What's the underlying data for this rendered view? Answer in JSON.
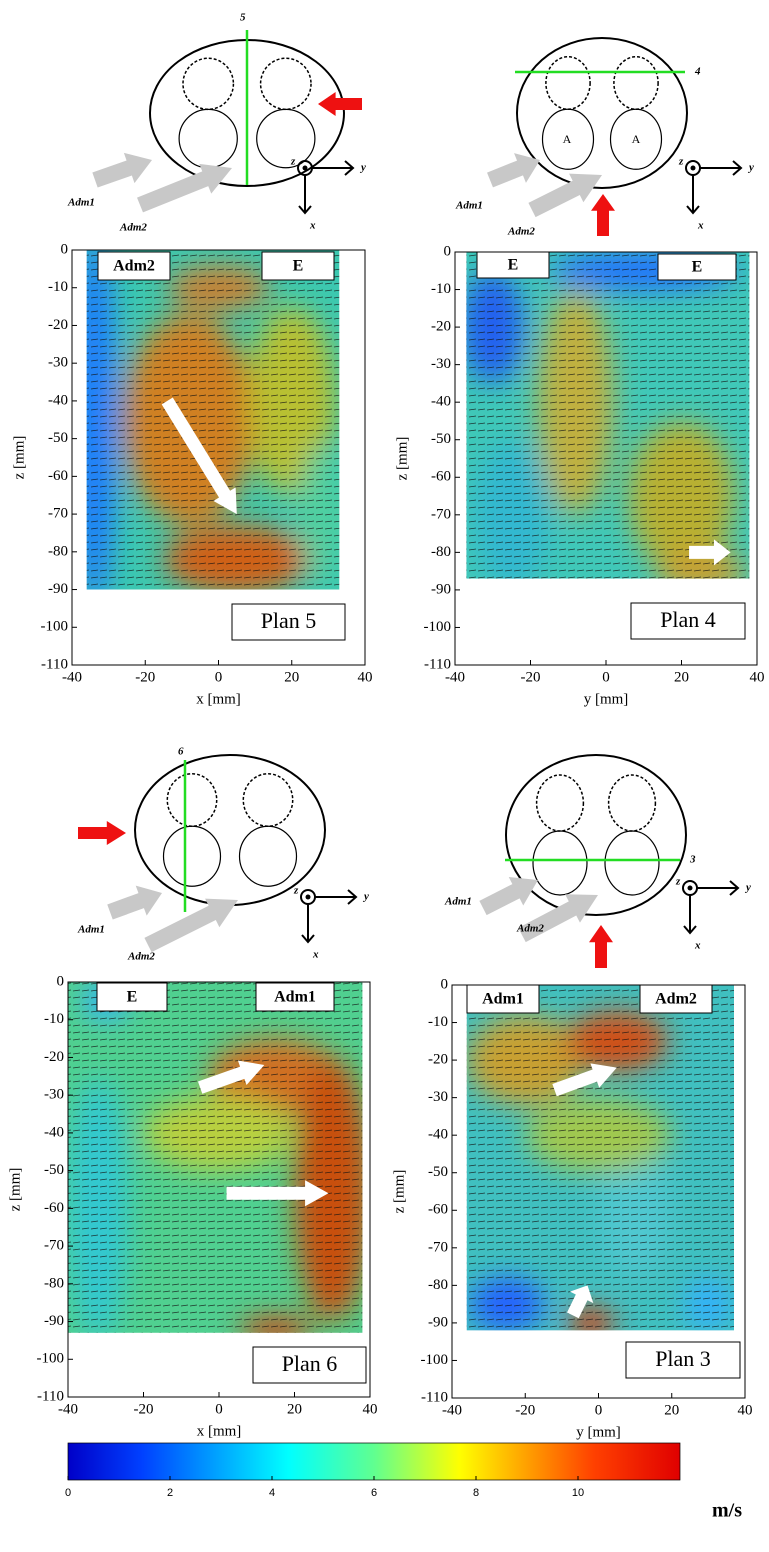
{
  "panels": [
    {
      "plane_number": "5",
      "diagram_labels": [
        "Adm1",
        "Adm2"
      ],
      "axis_labels": [
        "z",
        "y",
        "x"
      ],
      "field_labels": [
        "Adm2",
        "E"
      ],
      "plan_label": "Plan 5",
      "xlabel": "x [mm]",
      "ylabel": "z [mm]",
      "xlim": [
        -40,
        40
      ],
      "ylim": [
        -110,
        0
      ],
      "xticks": [
        -40,
        -20,
        0,
        20,
        40
      ],
      "yticks": [
        0,
        -10,
        -20,
        -30,
        -40,
        -50,
        -60,
        -70,
        -80,
        -90,
        -100,
        -110
      ]
    },
    {
      "plane_number": "4",
      "diagram_labels": [
        "Adm1",
        "Adm2"
      ],
      "inner_labels": [
        "A",
        "A"
      ],
      "axis_labels": [
        "z",
        "y",
        "x"
      ],
      "field_labels": [
        "E",
        "E"
      ],
      "plan_label": "Plan 4",
      "xlabel": "y [mm]",
      "ylabel": "z [mm]",
      "xlim": [
        -40,
        40
      ],
      "ylim": [
        -110,
        0
      ],
      "xticks": [
        -40,
        -20,
        0,
        20,
        40
      ],
      "yticks": [
        0,
        -10,
        -20,
        -30,
        -40,
        -50,
        -60,
        -70,
        -80,
        -90,
        -100,
        -110
      ]
    },
    {
      "plane_number": "6",
      "diagram_labels": [
        "Adm1",
        "Adm2"
      ],
      "axis_labels": [
        "z",
        "y",
        "x"
      ],
      "field_labels": [
        "E",
        "Adm1"
      ],
      "plan_label": "Plan 6",
      "xlabel": "x [mm]",
      "ylabel": "z [mm]",
      "xlim": [
        -40,
        40
      ],
      "ylim": [
        -110,
        0
      ],
      "xticks": [
        -40,
        -20,
        0,
        20,
        40
      ],
      "yticks": [
        0,
        -10,
        -20,
        -30,
        -40,
        -50,
        -60,
        -70,
        -80,
        -90,
        -100,
        -110
      ]
    },
    {
      "plane_number": "3",
      "diagram_labels": [
        "Adm1",
        "Adm2"
      ],
      "axis_labels": [
        "z",
        "y",
        "x"
      ],
      "field_labels": [
        "Adm1",
        "Adm2"
      ],
      "plan_label": "Plan 3",
      "xlabel": "y [mm]",
      "ylabel": "z [mm]",
      "xlim": [
        -40,
        40
      ],
      "ylim": [
        -110,
        0
      ],
      "xticks": [
        -40,
        -20,
        0,
        20,
        40
      ],
      "yticks": [
        0,
        -10,
        -20,
        -30,
        -40,
        -50,
        -60,
        -70,
        -80,
        -90,
        -100,
        -110
      ]
    }
  ],
  "colorbar": {
    "clim": [
      0,
      12
    ],
    "ticks": [
      0,
      2,
      4,
      6,
      8,
      10
    ],
    "unit": "m/s"
  }
}
